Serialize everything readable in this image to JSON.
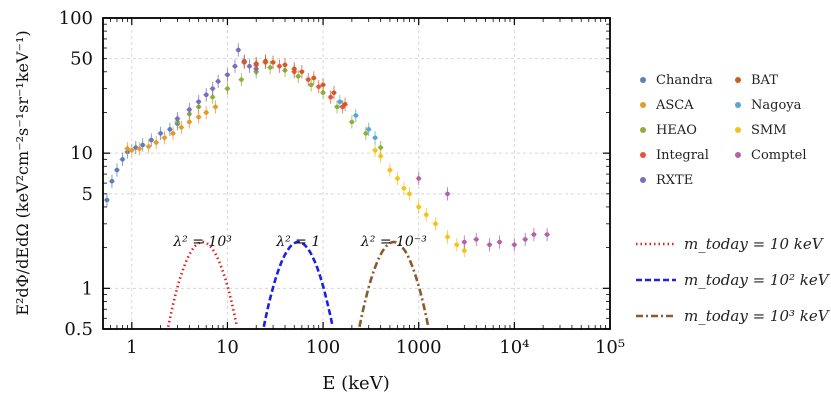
{
  "chart_data": {
    "type": "scatter",
    "xscale": "log",
    "yscale": "log",
    "xlim": [
      0.5,
      100000
    ],
    "ylim": [
      0.5,
      100
    ],
    "xlabel": "E (keV)",
    "ylabel": "E²dΦ/dEdΩ  (keV²cm⁻²s⁻¹sr⁻¹keV⁻¹)",
    "x_ticks": [
      {
        "value": 1,
        "label": "1"
      },
      {
        "value": 10,
        "label": "10"
      },
      {
        "value": 100,
        "label": "100"
      },
      {
        "value": 1000,
        "label": "1000"
      },
      {
        "value": 10000,
        "label": "10⁴"
      },
      {
        "value": 100000,
        "label": "10⁵"
      }
    ],
    "y_ticks": [
      {
        "value": 0.5,
        "label": "0.5"
      },
      {
        "value": 1,
        "label": "1"
      },
      {
        "value": 5,
        "label": "5"
      },
      {
        "value": 10,
        "label": "10"
      },
      {
        "value": 50,
        "label": "50"
      },
      {
        "value": 100,
        "label": "100"
      }
    ],
    "grid": true,
    "datasets": [
      {
        "name": "Chandra",
        "color": "#5b7fbd",
        "points": [
          [
            0.55,
            4.5
          ],
          [
            0.62,
            6.2
          ],
          [
            0.7,
            7.5
          ],
          [
            0.8,
            9.0
          ],
          [
            0.9,
            10.2
          ],
          [
            1.1,
            11.0
          ],
          [
            1.3,
            11.5
          ],
          [
            1.6,
            12.5
          ],
          [
            2.0,
            14.0
          ],
          [
            2.5,
            15.0
          ],
          [
            3.0,
            16.5
          ]
        ]
      },
      {
        "name": "ASCA",
        "color": "#e59a2c",
        "points": [
          [
            0.9,
            10.8
          ],
          [
            1.0,
            10.5
          ],
          [
            1.2,
            10.8
          ],
          [
            1.5,
            11.2
          ],
          [
            1.8,
            12.0
          ],
          [
            2.2,
            13.0
          ],
          [
            2.7,
            14.0
          ],
          [
            3.3,
            15.5
          ],
          [
            4.0,
            17.0
          ],
          [
            5.0,
            18.5
          ],
          [
            6.0,
            20.0
          ],
          [
            7.5,
            22.0
          ]
        ]
      },
      {
        "name": "HEAO",
        "color": "#8db03a",
        "points": [
          [
            3.0,
            17.0
          ],
          [
            4.0,
            19.5
          ],
          [
            5.0,
            22.0
          ],
          [
            7.0,
            26.0
          ],
          [
            10,
            30
          ],
          [
            14,
            35
          ],
          [
            20,
            40
          ],
          [
            28,
            43
          ],
          [
            40,
            41
          ],
          [
            55,
            37
          ],
          [
            75,
            32
          ],
          [
            100,
            28
          ],
          [
            140,
            22
          ],
          [
            200,
            17
          ],
          [
            280,
            14
          ],
          [
            400,
            11
          ]
        ]
      },
      {
        "name": "Integral",
        "color": "#e8533b",
        "points": [
          [
            20,
            45
          ],
          [
            25,
            47
          ],
          [
            35,
            44
          ],
          [
            50,
            40
          ],
          [
            70,
            35
          ],
          [
            90,
            31
          ],
          [
            120,
            26
          ],
          [
            160,
            22
          ]
        ]
      },
      {
        "name": "RXTE",
        "color": "#7d6db8",
        "points": [
          [
            3,
            18
          ],
          [
            4,
            21
          ],
          [
            5,
            24
          ],
          [
            6,
            27
          ],
          [
            7,
            30
          ],
          [
            8,
            34
          ],
          [
            10,
            38
          ],
          [
            12,
            44
          ],
          [
            13,
            58
          ],
          [
            15,
            48
          ],
          [
            17,
            44
          ],
          [
            20,
            42
          ]
        ]
      },
      {
        "name": "BAT",
        "color": "#d25a26",
        "points": [
          [
            15,
            47
          ],
          [
            20,
            46
          ],
          [
            25,
            48
          ],
          [
            30,
            47
          ],
          [
            40,
            45
          ],
          [
            50,
            42
          ],
          [
            60,
            40
          ],
          [
            80,
            36
          ],
          [
            100,
            32
          ],
          [
            130,
            28
          ],
          [
            170,
            23
          ]
        ]
      },
      {
        "name": "Nagoya",
        "color": "#57a8d0",
        "points": [
          [
            150,
            24
          ],
          [
            220,
            19
          ],
          [
            300,
            15
          ],
          [
            350,
            13
          ]
        ]
      },
      {
        "name": "SMM",
        "color": "#f5c21a",
        "points": [
          [
            350,
            10.5
          ],
          [
            400,
            9.5
          ],
          [
            500,
            7.5
          ],
          [
            600,
            6.5
          ],
          [
            700,
            5.5
          ],
          [
            800,
            5.0
          ],
          [
            1000,
            4.0
          ],
          [
            1200,
            3.5
          ],
          [
            1500,
            3.0
          ],
          [
            2000,
            2.4
          ],
          [
            2500,
            2.1
          ],
          [
            3000,
            1.9
          ]
        ]
      },
      {
        "name": "Comptel",
        "color": "#b262a8",
        "points": [
          [
            1000,
            6.5
          ],
          [
            2000,
            5.0
          ],
          [
            3000,
            2.2
          ],
          [
            4000,
            2.3
          ],
          [
            5500,
            2.1
          ],
          [
            7000,
            2.2
          ],
          [
            10000,
            2.1
          ],
          [
            13000,
            2.3
          ],
          [
            16000,
            2.5
          ],
          [
            22000,
            2.5
          ]
        ]
      }
    ],
    "curves": [
      {
        "name": "m_today = 10 keV",
        "lambda_label": "λ² = 10³",
        "color": "#e02020",
        "style": "dotted",
        "center": 5.5,
        "peak": 2.2,
        "half_width_dex": 0.44
      },
      {
        "name": "m_today = 10² keV",
        "lambda_label": "λ² = 1",
        "color": "#1a22e0",
        "style": "dashed",
        "center": 55,
        "peak": 2.2,
        "half_width_dex": 0.44
      },
      {
        "name": "m_today = 10³ keV",
        "lambda_label": "λ² = 10⁻³",
        "color": "#8a5a2b",
        "style": "dashdot",
        "center": 550,
        "peak": 2.2,
        "half_width_dex": 0.44
      }
    ]
  },
  "legend": {
    "datasets": [
      {
        "label": "Chandra",
        "color": "#5b7fbd"
      },
      {
        "label": "BAT",
        "color": "#d25a26"
      },
      {
        "label": "ASCA",
        "color": "#e59a2c"
      },
      {
        "label": "Nagoya",
        "color": "#57a8d0"
      },
      {
        "label": "HEAO",
        "color": "#8db03a"
      },
      {
        "label": "SMM",
        "color": "#f5c21a"
      },
      {
        "label": "Integral",
        "color": "#e8533b"
      },
      {
        "label": "Comptel",
        "color": "#b262a8"
      },
      {
        "label": "RXTE",
        "color": "#7d6db8"
      }
    ],
    "models": [
      {
        "label": "m_today = 10 keV",
        "color": "#e02020",
        "style": "dotted"
      },
      {
        "label": "m_today = 10² keV",
        "color": "#1a22e0",
        "style": "dashed"
      },
      {
        "label": "m_today = 10³ keV",
        "color": "#8a5a2b",
        "style": "dashdot"
      }
    ]
  }
}
